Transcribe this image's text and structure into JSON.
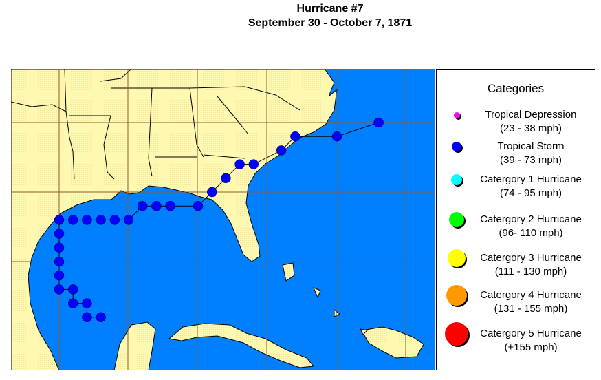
{
  "title": "Hurricane #7",
  "subtitle": "September 30 - October 7, 1871",
  "colors": {
    "ocean": "#0080ff",
    "land": "#fff8b0",
    "track": "#0000ff"
  },
  "legend": {
    "title": "Categories",
    "items": [
      {
        "name": "Tropical Depression",
        "range": "(23 - 38 mph)",
        "color": "#ff00ff",
        "size": 9
      },
      {
        "name": "Tropical Storm",
        "range": "(39 - 73 mph)",
        "color": "#0000ff",
        "size": 14
      },
      {
        "name": "Catergory 1 Hurricane",
        "range": "(74 - 95 mph)",
        "color": "#00ffff",
        "size": 16
      },
      {
        "name": "Catergory 2 Hurricane",
        "range": "(96- 110 mph)",
        "color": "#00ff00",
        "size": 22
      },
      {
        "name": "Catergory 3 Hurricane",
        "range": "(111 - 130 mph)",
        "color": "#ffff00",
        "size": 26
      },
      {
        "name": "Catergory 4 Hurricane",
        "range": "(131 - 155 mph)",
        "color": "#ff9900",
        "size": 30
      },
      {
        "name": "Catergory 5 Hurricane",
        "range": "(+155 mph)",
        "color": "#ff0000",
        "size": 34
      }
    ]
  },
  "track": {
    "category": "Tropical Storm",
    "points": [
      [
        -92,
        21
      ],
      [
        -93,
        21
      ],
      [
        -93,
        22
      ],
      [
        -94,
        22
      ],
      [
        -94,
        23
      ],
      [
        -95,
        23
      ],
      [
        -95,
        24
      ],
      [
        -95,
        25
      ],
      [
        -95,
        26
      ],
      [
        -95,
        27
      ],
      [
        -95,
        28
      ],
      [
        -94,
        28
      ],
      [
        -93,
        28
      ],
      [
        -92,
        28
      ],
      [
        -91,
        28
      ],
      [
        -90,
        28
      ],
      [
        -89,
        29
      ],
      [
        -88,
        29
      ],
      [
        -87,
        29
      ],
      [
        -85,
        29
      ],
      [
        -84,
        30
      ],
      [
        -83,
        31
      ],
      [
        -82,
        32
      ],
      [
        -81,
        32
      ],
      [
        -79,
        33
      ],
      [
        -78,
        34
      ],
      [
        -75,
        34
      ],
      [
        -72,
        35
      ]
    ]
  }
}
